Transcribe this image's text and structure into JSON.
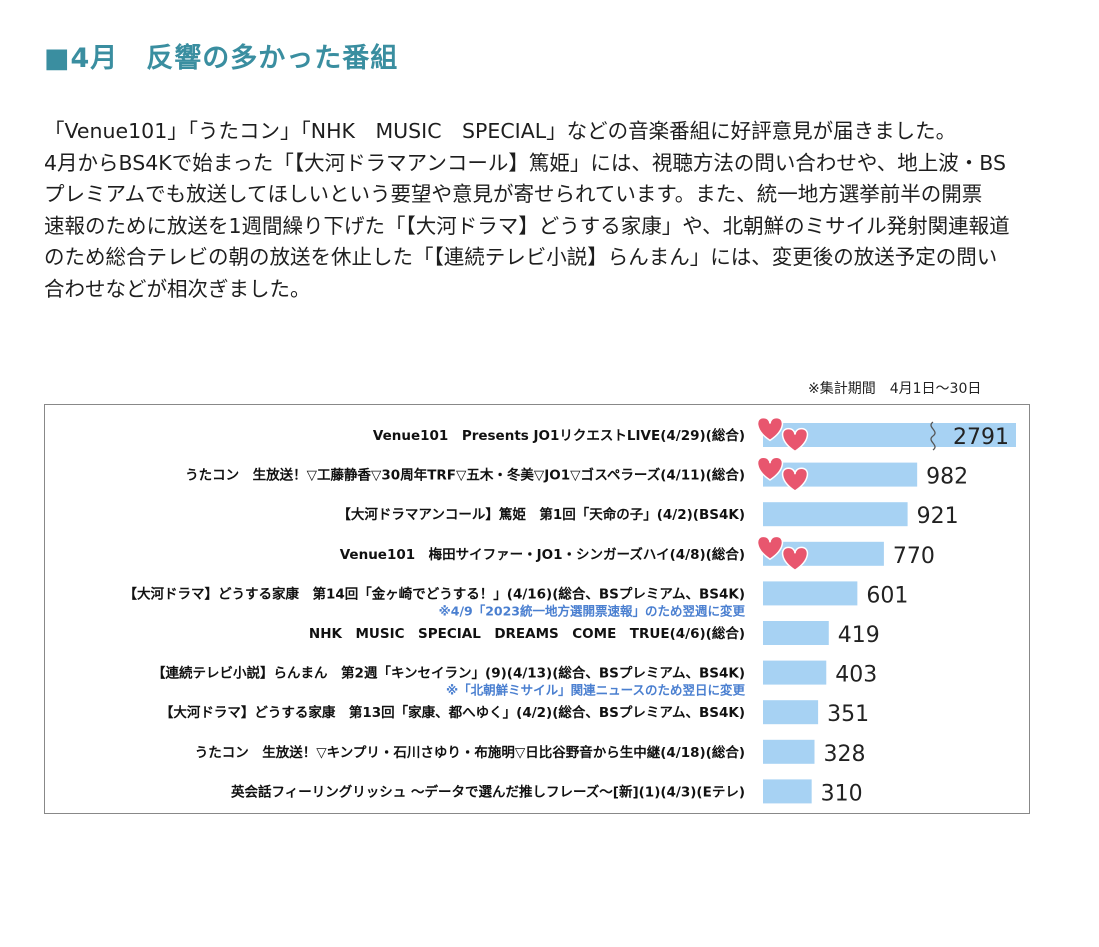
{
  "heading": "■4月　反響の多かった番組",
  "intro_lines": [
    "「Venue101」「うたコン」「NHK　MUSIC　SPECIAL」などの音楽番組に好評意見が届きました。",
    "4月からBS4Kで始まった「【大河ドラマアンコール】篤姫」には、視聴方法の問い合わせや、地上波・BS",
    "プレミアムでも放送してほしいという要望や意見が寄せられています。また、統一地方選挙前半の開票",
    "速報のために放送を1週間繰り下げた「【大河ドラマ】どうする家康」や、北朝鮮のミサイル発射関連報道",
    "のため総合テレビの朝の放送を休止した「【連続テレビ小説】らんまん」には、変更後の放送予定の問い",
    "合わせなどが相次ぎました。"
  ],
  "period_note": "※集計期間　4月1日〜30日",
  "colors": {
    "bar": "#a7d2f3",
    "heading": "#3a8ea0",
    "note": "#4a7fd0",
    "heart": "#e8566e"
  },
  "chart_data": {
    "type": "bar",
    "orientation": "horizontal",
    "axis_break_on_first_bar": true,
    "categories": [
      "Venue101　Presents JO1リクエストLIVE(4/29)(総合)",
      "うたコン　生放送！▽工藤静香▽30周年TRF▽五木・冬美▽JO1▽ゴスペラーズ(4/11)(総合)",
      "【大河ドラマアンコール】篤姫　第1回「天命の子」(4/2)(BS4K)",
      "Venue101　梅田サイファー・JO1・シンガーズハイ(4/8)(総合)",
      "【大河ドラマ】どうする家康　第14回「金ヶ崎でどうする！」(4/16)(総合、BSプレミアム、BS4K)",
      "NHK　MUSIC　SPECIAL　DREAMS　COME　TRUE(4/6)(総合)",
      "【連続テレビ小説】らんまん　第2週「キンセイラン」(9)(4/13)(総合、BSプレミアム、BS4K)",
      "【大河ドラマ】どうする家康　第13回「家康、都へゆく」(4/2)(総合、BSプレミアム、BS4K)",
      "うたコン　生放送！▽キンプリ・石川さゆり・布施明▽日比谷野音から生中継(4/18)(総合)",
      "英会話フィーリングリッシュ ～データで選んだ推しフレーズ～[新](1)(4/3)(Eテレ)"
    ],
    "values": [
      2791,
      982,
      921,
      770,
      601,
      419,
      403,
      351,
      328,
      310
    ],
    "annotations": [
      {
        "index": 4,
        "text": "※4/9「2023統一地方選開票速報」のため翌週に変更"
      },
      {
        "index": 6,
        "text": "※「北朝鮮ミサイル」関連ニュースのため翌日に変更"
      }
    ],
    "hearts_on": [
      0,
      1,
      3
    ]
  }
}
